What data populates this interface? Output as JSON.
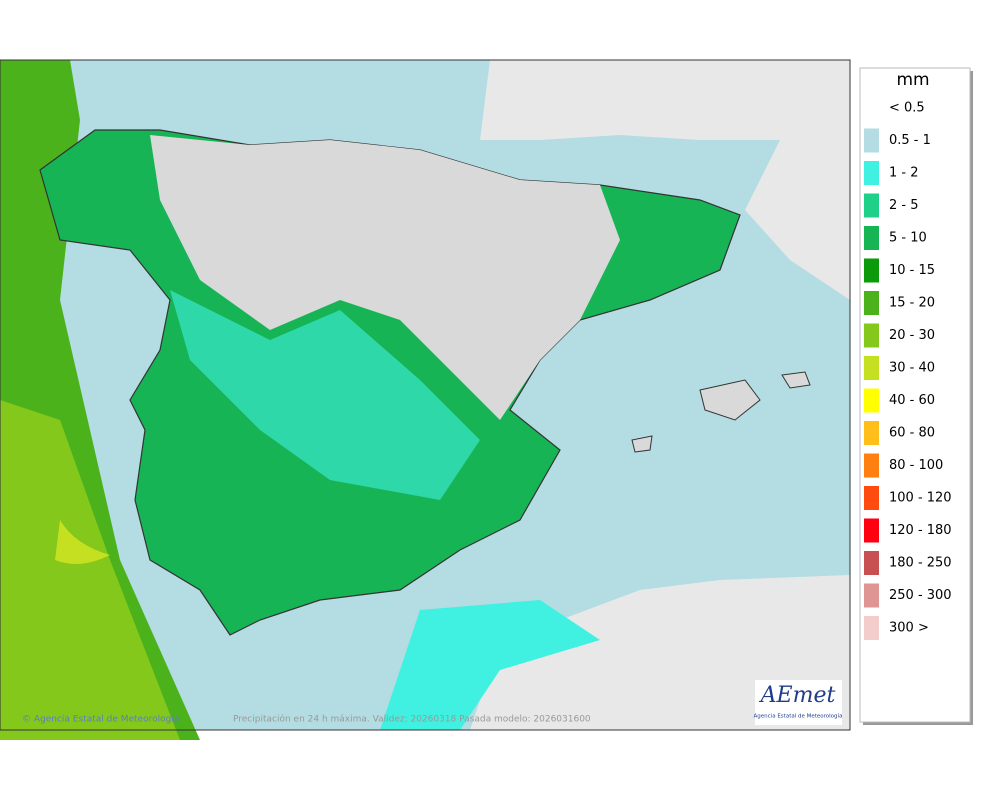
{
  "legend": {
    "title": "mm",
    "items": [
      {
        "label": "< 0.5",
        "color": "#ffffff"
      },
      {
        "label": "0.5 - 1",
        "color": "#b3dde3"
      },
      {
        "label": "1 - 2",
        "color": "#40f0e0"
      },
      {
        "label": "2 - 5",
        "color": "#1fd088"
      },
      {
        "label": "5 - 10",
        "color": "#16b455"
      },
      {
        "label": "10 - 15",
        "color": "#0a9a0a"
      },
      {
        "label": "15 - 20",
        "color": "#4cb21c"
      },
      {
        "label": "20 - 30",
        "color": "#84c81c"
      },
      {
        "label": "30 - 40",
        "color": "#c4e020"
      },
      {
        "label": "40 - 60",
        "color": "#ffff00"
      },
      {
        "label": "60 - 80",
        "color": "#ffbe1a"
      },
      {
        "label": "80 - 100",
        "color": "#ff8010"
      },
      {
        "label": "100 - 120",
        "color": "#ff4a10"
      },
      {
        "label": "120 - 180",
        "color": "#ff0010"
      },
      {
        "label": "180 - 250",
        "color": "#c85050"
      },
      {
        "label": "250 - 300",
        "color": "#e09595"
      },
      {
        "label": "300 >",
        "color": "#f3cccc"
      }
    ]
  },
  "footer": {
    "copyright": "© Agencia Estatal de Meteorología",
    "caption": "Precipitación en 24 h máxima. Validez: 20260318 Pasada modelo: 2026031600"
  },
  "logo": {
    "name": "AEmet",
    "subtitle": "Agencia Estatal de Meteorología"
  }
}
